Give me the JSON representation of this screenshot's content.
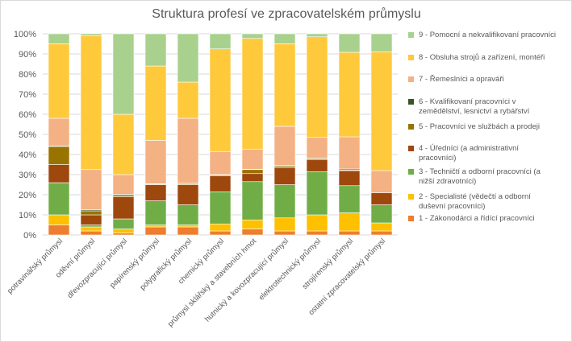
{
  "chart_data": {
    "type": "bar",
    "stacked": true,
    "percent": true,
    "title": "Struktura profesí ve zpracovatelském průmyslu",
    "ylim": [
      0,
      100
    ],
    "yticks": [
      "0%",
      "10%",
      "20%",
      "30%",
      "40%",
      "50%",
      "60%",
      "70%",
      "80%",
      "90%",
      "100%"
    ],
    "legend_position": "right",
    "grid": true,
    "categories": [
      "potravinářský průmysl",
      "oděvní průmysl",
      "dřevozpracující průmysl",
      "papírenský průmysl",
      "polygrafický průmysl",
      "chemický průmysl",
      "průmysl sklářský a stavebních hmot",
      "hutnický a kovozpracující průmysl",
      "elektrotechnický průmysl",
      "strojírenský průmysl",
      "ostatní zpracovatelský průmysl"
    ],
    "series": [
      {
        "name": "1 - Zákonodárci a řídící pracovníci",
        "color": "#ed7d31",
        "values": [
          5,
          2,
          1,
          4,
          4,
          2,
          3,
          2,
          2,
          2,
          2
        ]
      },
      {
        "name": "2 - Specialisté (vědečtí a odborní duševní pracovníci)",
        "color": "#ffc000",
        "values": [
          5,
          2,
          2,
          1,
          1,
          3.5,
          4.5,
          6.5,
          8,
          9,
          4
        ]
      },
      {
        "name": "3 - Techničtí a odborní pracovníci (a nižší zdravotníci)",
        "color": "#70ad47",
        "values": [
          16,
          1,
          5,
          12,
          10,
          16,
          19,
          16.5,
          21.5,
          13.5,
          9
        ]
      },
      {
        "name": "4 - Úředníci (a administrativní pracovníci)",
        "color": "#9e480e",
        "values": [
          9,
          5,
          11,
          8,
          10,
          8,
          4,
          8.5,
          6,
          7.5,
          6
        ]
      },
      {
        "name": "5 - Pracovníci ve službách a prodeji",
        "color": "#997300",
        "values": [
          9,
          2,
          0.7,
          0.3,
          0.5,
          0.3,
          2,
          0.7,
          0.5,
          0.3,
          0
        ]
      },
      {
        "name": "6 - Kvalifikovaní pracovníci v zemědělství, lesnictví a rybářství",
        "color": "#375623",
        "values": [
          0.3,
          0.5,
          0.5,
          0.2,
          0.2,
          0.2,
          0.2,
          0.3,
          0.2,
          0.5,
          0
        ]
      },
      {
        "name": "7 - Řemeslníci a opraváři",
        "color": "#f4b183",
        "values": [
          13.7,
          20,
          9.8,
          21.5,
          32.3,
          11.5,
          10,
          19.5,
          10.3,
          16,
          11
        ]
      },
      {
        "name": "8 - Obsluha strojů a zařízení, montéři",
        "color": "#ffc93c",
        "values": [
          37,
          66.5,
          30,
          37,
          18,
          51,
          55,
          41,
          50,
          42,
          59
        ]
      },
      {
        "name": "9 - Pomocní a nekvalifikovaní pracovníci",
        "color": "#a9d18e",
        "values": [
          5,
          1,
          40,
          16,
          24,
          7.5,
          2.3,
          5,
          1.5,
          9.2,
          9
        ]
      }
    ]
  }
}
